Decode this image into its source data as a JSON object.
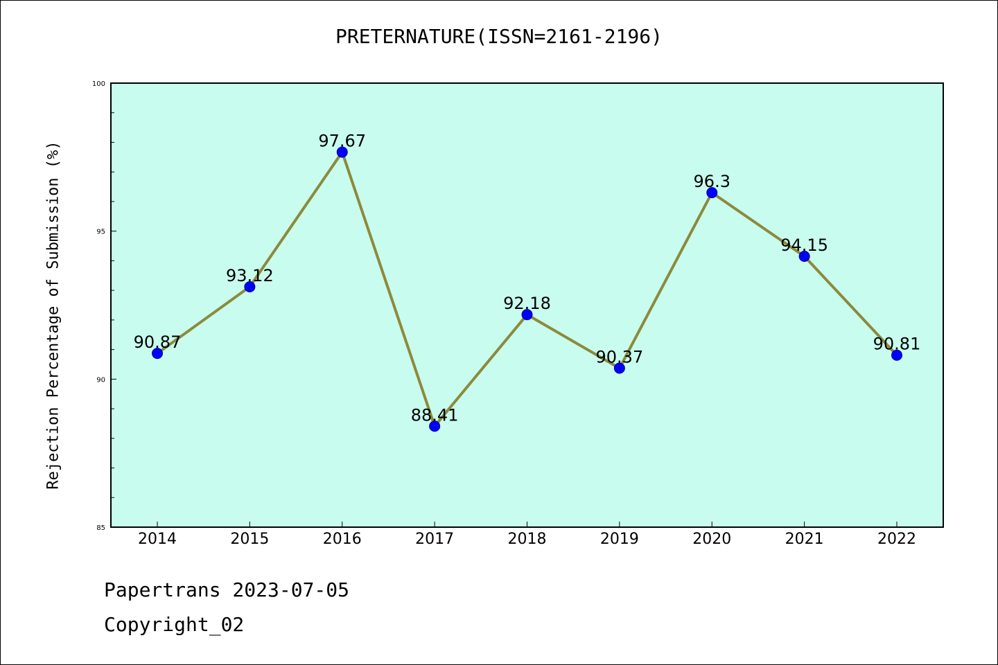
{
  "chart_data": {
    "type": "line",
    "title": "PRETERNATURE(ISSN=2161-2196)",
    "ylabel": "Rejection Percentage of Submission (%)",
    "xlabel": "",
    "categories": [
      "2014",
      "2015",
      "2016",
      "2017",
      "2018",
      "2019",
      "2020",
      "2021",
      "2022"
    ],
    "series": [
      {
        "values": [
          90.87,
          93.12,
          97.67,
          88.41,
          92.18,
          90.37,
          96.3,
          94.15,
          90.81
        ],
        "labels": [
          "90.87",
          "93.12",
          "97.67",
          "88.41",
          "92.18",
          "90.37",
          "96.3",
          "94.15",
          "90.81"
        ]
      }
    ],
    "ylim": [
      85,
      100
    ],
    "yticks": [
      "85",
      "90",
      "95",
      "100"
    ],
    "grid": false,
    "colors": {
      "plot_background": "#c8fcee",
      "line": "#8c8a3c",
      "marker": "#0000ff"
    }
  },
  "footer": {
    "line1": "Papertrans 2023-07-05",
    "line2": "Copyright_02"
  }
}
